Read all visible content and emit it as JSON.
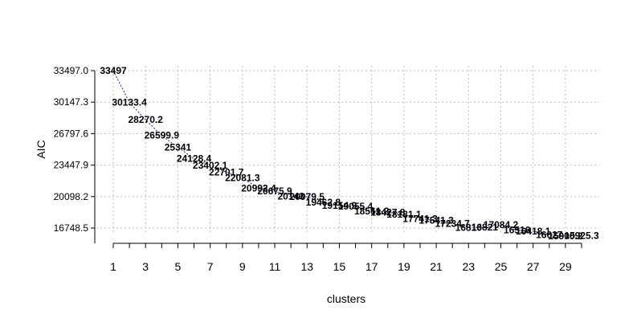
{
  "chart_data": {
    "type": "line",
    "title": "",
    "xlabel": "clusters",
    "ylabel": "AIC",
    "x": [
      1,
      2,
      3,
      4,
      5,
      6,
      7,
      8,
      9,
      10,
      11,
      12,
      13,
      14,
      15,
      16,
      17,
      18,
      19,
      20,
      21,
      22,
      23,
      24,
      25,
      26,
      27,
      28,
      29,
      30
    ],
    "series": [
      {
        "values": [
          33497,
          30133.4,
          28270.2,
          26599.9,
          25341,
          24128.4,
          23402.1,
          22701.7,
          22081.3,
          20992.4,
          20675.9,
          20143.0,
          20079.5,
          19462.8,
          19154.9,
          19055.4,
          18561.2,
          18427.8,
          18181.1,
          17741.3,
          17541.3,
          17234.7,
          16810.0,
          16821.0,
          17084.2,
          16516.0,
          16418.1,
          16027.0,
          15900.2,
          15925.3
        ],
        "labels": [
          "33497",
          "30133.4",
          "28270.2",
          "26599.9",
          "25341",
          "24128.4",
          "23402.1",
          "22701.7",
          "22081.3",
          "20992.4",
          "20675.9",
          "20143",
          "20079.5",
          "19462.8",
          "19154.9",
          "19055.4",
          "18561.2",
          "18427.8",
          "18181.1",
          "17741.3",
          "17541.3",
          "17234.7",
          "16810",
          "16821",
          "17084.2",
          "16516",
          "16418.1",
          "16027",
          "15900.2",
          "15925.3"
        ]
      }
    ],
    "xticks": [
      "1",
      "3",
      "5",
      "7",
      "9",
      "11",
      "13",
      "15",
      "17",
      "19",
      "21",
      "23",
      "25",
      "27",
      "29"
    ],
    "yticks": [
      16748.5,
      20098.2,
      23447.9,
      26797.6,
      30147.3,
      33497.0
    ],
    "ytick_labels": [
      "16748.5",
      "20098.2",
      "23447.9",
      "26797.6",
      "30147.3",
      "33497.0"
    ],
    "xlim": [
      1,
      30
    ],
    "ylim": [
      16748.5,
      33497.0
    ],
    "grid": true,
    "colors": {
      "line": "#1f2a8a",
      "grid": "#bdbdbd"
    }
  }
}
